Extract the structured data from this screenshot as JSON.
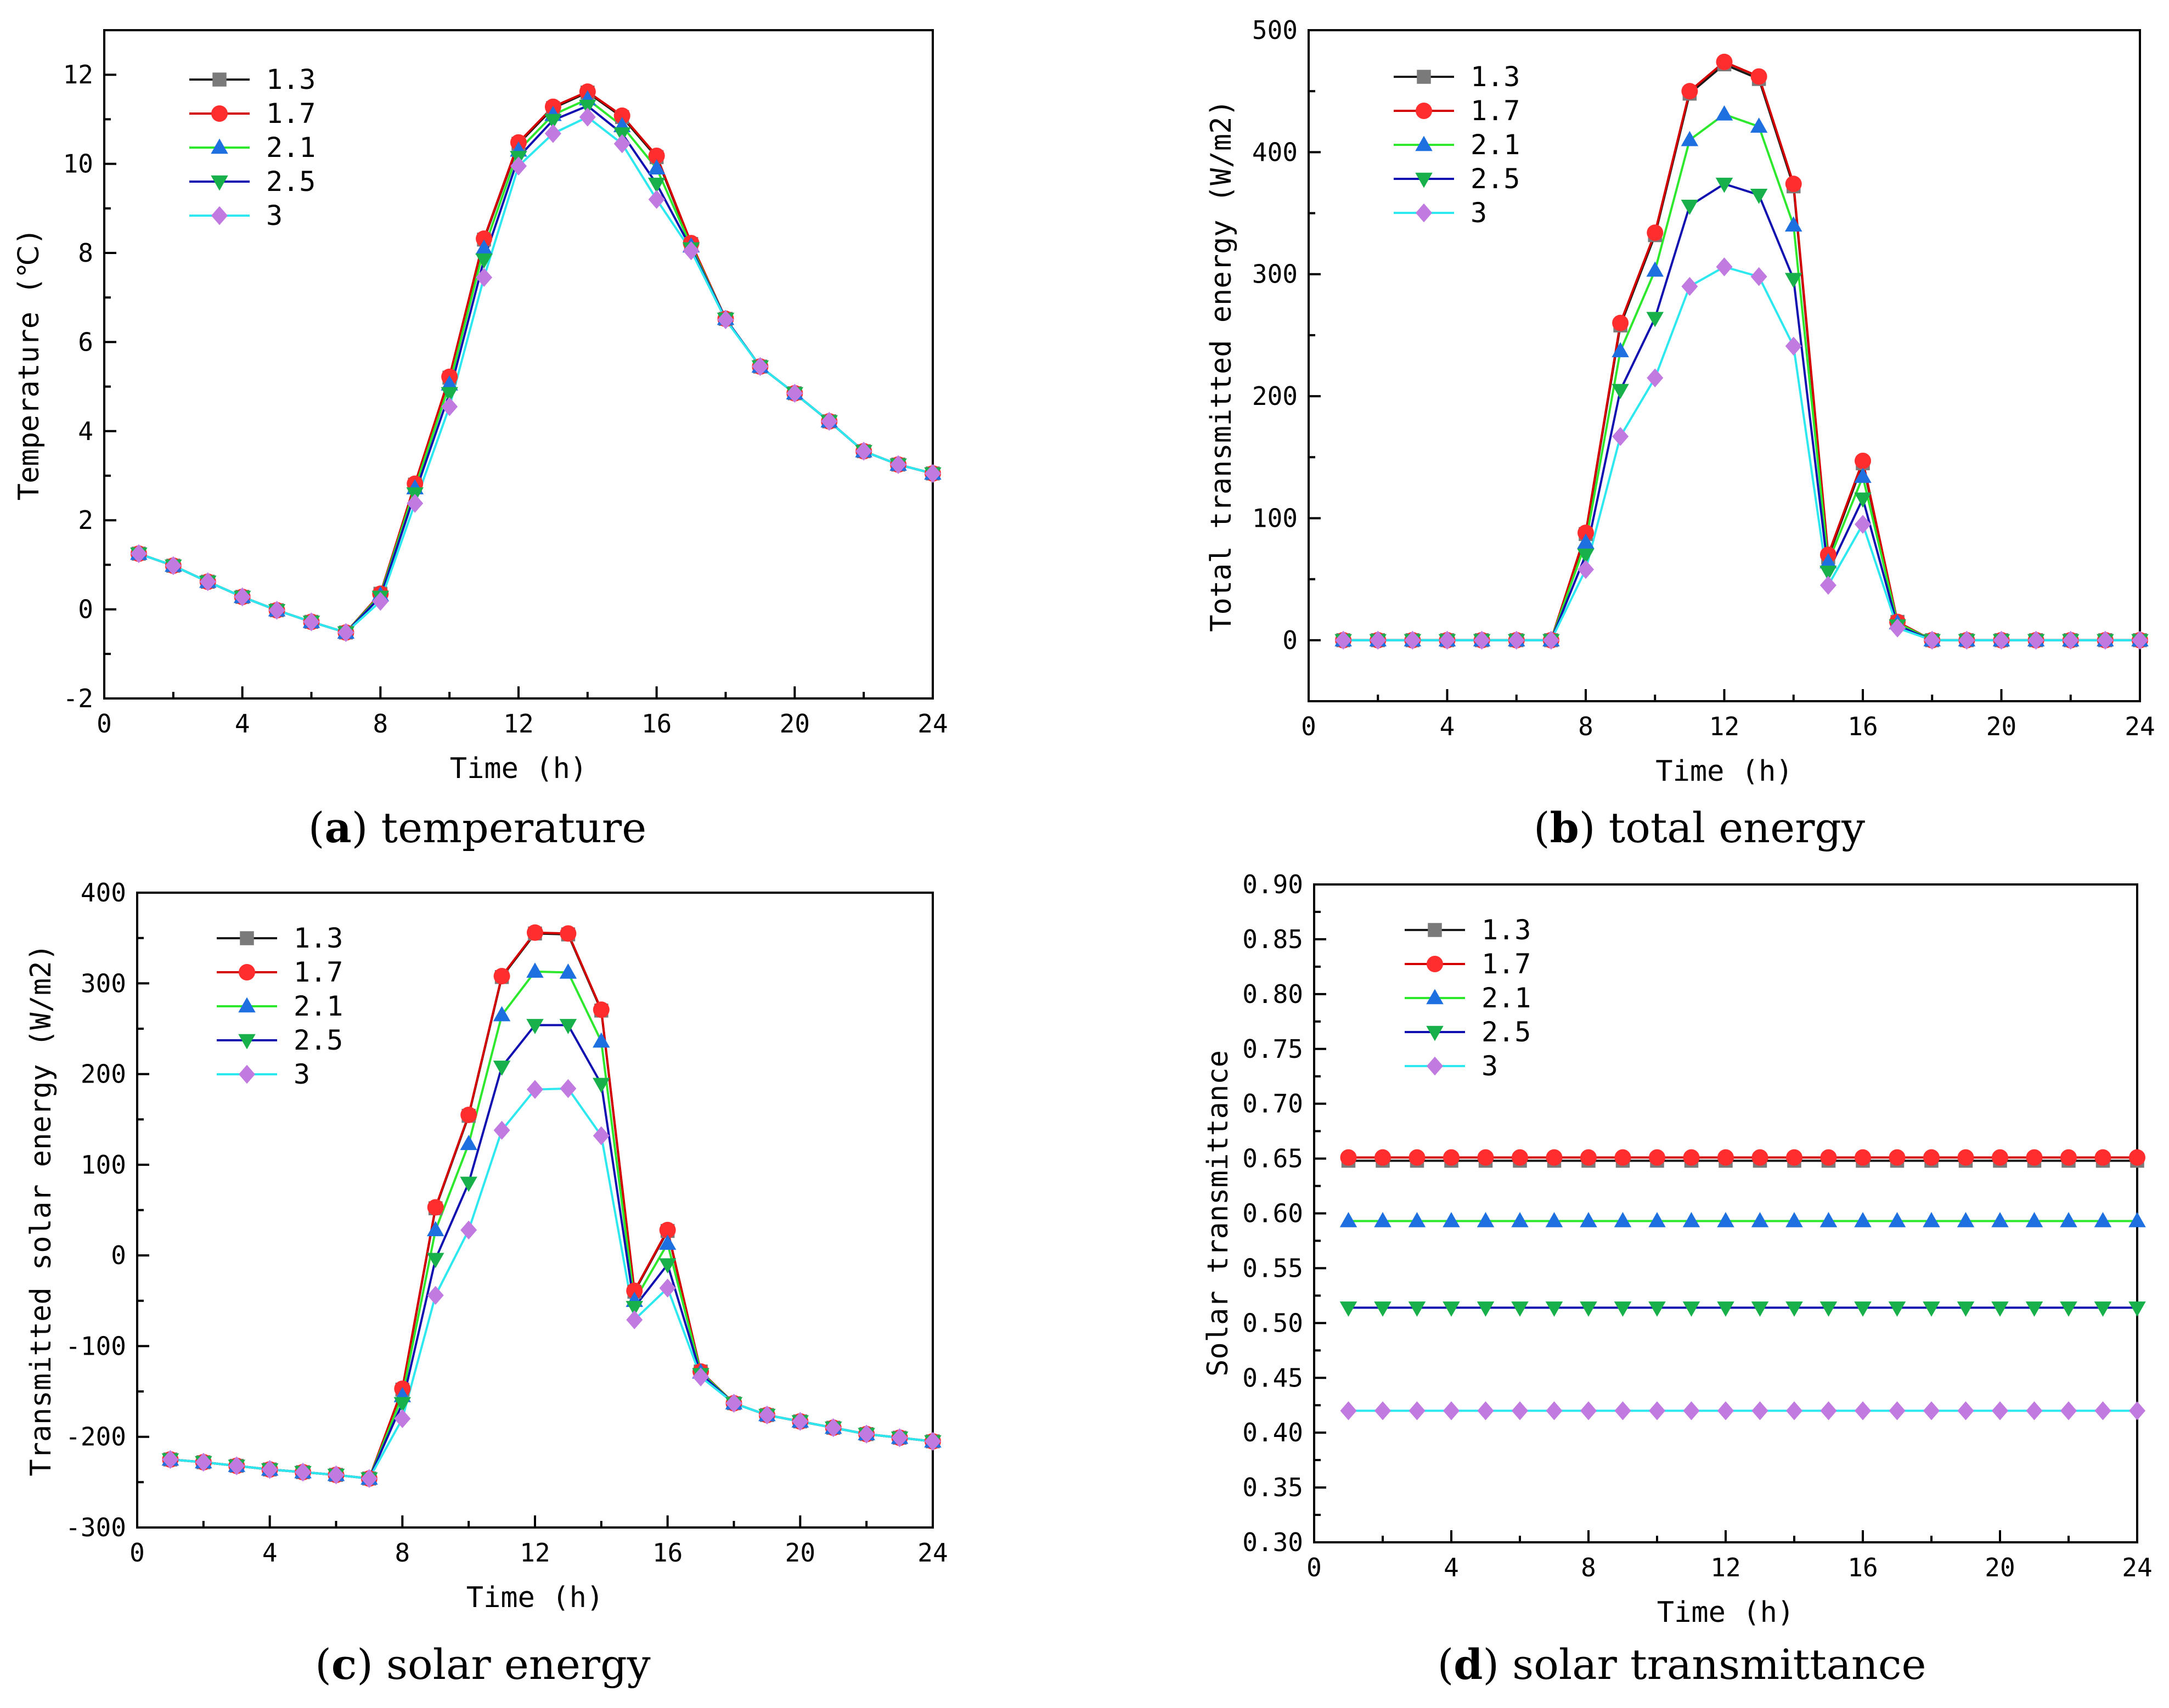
{
  "series_styles": [
    {
      "name": "1.3",
      "line": "#1a1a1a",
      "marker": "square",
      "fill": "#7a7a7a"
    },
    {
      "name": "1.7",
      "line": "#d40000",
      "marker": "circle",
      "fill": "#ff2d2d"
    },
    {
      "name": "2.1",
      "line": "#2ee82e",
      "marker": "triangle-up",
      "fill": "#1e6fe0"
    },
    {
      "name": "2.5",
      "line": "#1010b0",
      "marker": "triangle-down",
      "fill": "#18b04a"
    },
    {
      "name": "3",
      "line": "#2ee8f0",
      "marker": "diamond",
      "fill": "#c07ae0"
    }
  ],
  "chart_data": [
    {
      "type": "line",
      "title": "temperature",
      "caption_label": "a",
      "xlabel": "Time (h)",
      "ylabel": "Temperature (℃)",
      "xlim": [
        0,
        24
      ],
      "ylim": [
        -2,
        13
      ],
      "xticks": [
        0,
        4,
        8,
        12,
        16,
        20,
        24
      ],
      "yticks": [
        -2,
        0,
        2,
        4,
        6,
        8,
        10,
        12
      ],
      "x": [
        1,
        2,
        3,
        4,
        5,
        6,
        7,
        8,
        9,
        10,
        11,
        12,
        13,
        14,
        15,
        16,
        17,
        18,
        19,
        20,
        21,
        22,
        23,
        24
      ],
      "series": [
        {
          "name": "1.3",
          "values": [
            1.25,
            0.98,
            0.62,
            0.28,
            -0.02,
            -0.28,
            -0.52,
            0.35,
            2.8,
            5.2,
            8.3,
            10.45,
            11.25,
            11.6,
            11.05,
            10.15,
            8.2,
            6.52,
            5.45,
            4.85,
            4.22,
            3.55,
            3.25,
            3.05
          ]
        },
        {
          "name": "1.7",
          "values": [
            1.25,
            0.98,
            0.62,
            0.28,
            -0.02,
            -0.28,
            -0.52,
            0.35,
            2.82,
            5.22,
            8.32,
            10.48,
            11.28,
            11.62,
            11.08,
            10.18,
            8.22,
            6.52,
            5.45,
            4.85,
            4.22,
            3.55,
            3.25,
            3.05
          ]
        },
        {
          "name": "2.1",
          "values": [
            1.25,
            0.98,
            0.62,
            0.28,
            -0.02,
            -0.28,
            -0.52,
            0.32,
            2.72,
            5.05,
            8.1,
            10.3,
            11.1,
            11.45,
            10.85,
            9.9,
            8.15,
            6.52,
            5.45,
            4.85,
            4.22,
            3.55,
            3.25,
            3.05
          ]
        },
        {
          "name": "2.5",
          "values": [
            1.25,
            0.98,
            0.62,
            0.28,
            -0.02,
            -0.28,
            -0.52,
            0.28,
            2.6,
            4.85,
            7.85,
            10.15,
            10.98,
            11.3,
            10.68,
            9.55,
            8.1,
            6.52,
            5.45,
            4.85,
            4.22,
            3.55,
            3.25,
            3.05
          ]
        },
        {
          "name": "3",
          "values": [
            1.25,
            0.98,
            0.62,
            0.28,
            -0.02,
            -0.28,
            -0.52,
            0.18,
            2.38,
            4.55,
            7.45,
            9.95,
            10.68,
            11.05,
            10.45,
            9.2,
            8.05,
            6.5,
            5.45,
            4.85,
            4.22,
            3.55,
            3.25,
            3.05
          ]
        }
      ]
    },
    {
      "type": "line",
      "title": "total energy",
      "caption_label": "b",
      "xlabel": "Time (h)",
      "ylabel": "Total transmitted energy (W/m2)",
      "xlim": [
        0,
        24
      ],
      "ylim": [
        -50,
        500
      ],
      "xticks": [
        0,
        4,
        8,
        12,
        16,
        20,
        24
      ],
      "yticks": [
        0,
        100,
        200,
        300,
        400,
        500
      ],
      "x": [
        1,
        2,
        3,
        4,
        5,
        6,
        7,
        8,
        9,
        10,
        11,
        12,
        13,
        14,
        15,
        16,
        17,
        18,
        19,
        20,
        21,
        22,
        23,
        24
      ],
      "series": [
        {
          "name": "1.3",
          "values": [
            0,
            0,
            0,
            0,
            0,
            0,
            0,
            87,
            258,
            332,
            448,
            472,
            460,
            372,
            68,
            145,
            15,
            0,
            0,
            0,
            0,
            0,
            0,
            0
          ]
        },
        {
          "name": "1.7",
          "values": [
            0,
            0,
            0,
            0,
            0,
            0,
            0,
            88,
            260,
            334,
            450,
            474,
            462,
            374,
            70,
            147,
            15,
            0,
            0,
            0,
            0,
            0,
            0,
            0
          ]
        },
        {
          "name": "2.1",
          "values": [
            0,
            0,
            0,
            0,
            0,
            0,
            0,
            80,
            237,
            303,
            410,
            431,
            421,
            340,
            64,
            134,
            14,
            0,
            0,
            0,
            0,
            0,
            0,
            0
          ]
        },
        {
          "name": "2.5",
          "values": [
            0,
            0,
            0,
            0,
            0,
            0,
            0,
            70,
            205,
            264,
            356,
            374,
            365,
            296,
            56,
            116,
            12,
            0,
            0,
            0,
            0,
            0,
            0,
            0
          ]
        },
        {
          "name": "3",
          "values": [
            0,
            0,
            0,
            0,
            0,
            0,
            0,
            58,
            167,
            215,
            290,
            306,
            298,
            241,
            45,
            95,
            10,
            0,
            0,
            0,
            0,
            0,
            0,
            0
          ]
        }
      ]
    },
    {
      "type": "line",
      "title": "solar energy",
      "caption_label": "c",
      "xlabel": "Time (h)",
      "ylabel": "Transmitted solar energy (W/m2)",
      "xlim": [
        0,
        24
      ],
      "ylim": [
        -300,
        400
      ],
      "xticks": [
        0,
        4,
        8,
        12,
        16,
        20,
        24
      ],
      "yticks": [
        -300,
        -200,
        -100,
        0,
        100,
        200,
        300,
        400
      ],
      "x": [
        1,
        2,
        3,
        4,
        5,
        6,
        7,
        8,
        9,
        10,
        11,
        12,
        13,
        14,
        15,
        16,
        17,
        18,
        19,
        20,
        21,
        22,
        23,
        24
      ],
      "series": [
        {
          "name": "1.3",
          "values": [
            -225,
            -228,
            -232,
            -236,
            -239,
            -242,
            -246,
            -148,
            52,
            154,
            307,
            355,
            354,
            270,
            -40,
            27,
            -128,
            -163,
            -176,
            -183,
            -190,
            -197,
            -201,
            -205
          ]
        },
        {
          "name": "1.7",
          "values": [
            -225,
            -228,
            -232,
            -236,
            -239,
            -242,
            -246,
            -147,
            53,
            155,
            308,
            356,
            355,
            271,
            -39,
            28,
            -128,
            -163,
            -176,
            -183,
            -190,
            -197,
            -201,
            -205
          ]
        },
        {
          "name": "2.1",
          "values": [
            -225,
            -228,
            -232,
            -236,
            -239,
            -242,
            -246,
            -155,
            28,
            123,
            265,
            313,
            312,
            236,
            -50,
            13,
            -129,
            -163,
            -176,
            -183,
            -190,
            -197,
            -201,
            -205
          ]
        },
        {
          "name": "2.5",
          "values": [
            -225,
            -228,
            -232,
            -236,
            -239,
            -242,
            -246,
            -163,
            -4,
            80,
            208,
            254,
            254,
            189,
            -57,
            -10,
            -131,
            -163,
            -176,
            -183,
            -190,
            -197,
            -201,
            -205
          ]
        },
        {
          "name": "3",
          "values": [
            -225,
            -228,
            -232,
            -236,
            -239,
            -242,
            -246,
            -180,
            -44,
            28,
            138,
            183,
            184,
            132,
            -71,
            -36,
            -134,
            -163,
            -176,
            -183,
            -190,
            -197,
            -201,
            -205
          ]
        }
      ]
    },
    {
      "type": "line",
      "title": "solar transmittance",
      "caption_label": "d",
      "xlabel": "Time (h)",
      "ylabel": "Solar transmittance",
      "xlim": [
        0,
        24
      ],
      "ylim": [
        0.3,
        0.9
      ],
      "xticks": [
        0,
        4,
        8,
        12,
        16,
        20,
        24
      ],
      "yticks": [
        "0.30",
        "0.35",
        "0.40",
        "0.45",
        "0.50",
        "0.55",
        "0.60",
        "0.65",
        "0.70",
        "0.75",
        "0.80",
        "0.85",
        "0.90"
      ],
      "x": [
        1,
        2,
        3,
        4,
        5,
        6,
        7,
        8,
        9,
        10,
        11,
        12,
        13,
        14,
        15,
        16,
        17,
        18,
        19,
        20,
        21,
        22,
        23,
        24
      ],
      "series": [
        {
          "name": "1.3",
          "values": [
            0.648,
            0.648,
            0.648,
            0.648,
            0.648,
            0.648,
            0.648,
            0.648,
            0.648,
            0.648,
            0.648,
            0.648,
            0.648,
            0.648,
            0.648,
            0.648,
            0.648,
            0.648,
            0.648,
            0.648,
            0.648,
            0.648,
            0.648,
            0.648
          ]
        },
        {
          "name": "1.7",
          "values": [
            0.651,
            0.651,
            0.651,
            0.651,
            0.651,
            0.651,
            0.651,
            0.651,
            0.651,
            0.651,
            0.651,
            0.651,
            0.651,
            0.651,
            0.651,
            0.651,
            0.651,
            0.651,
            0.651,
            0.651,
            0.651,
            0.651,
            0.651,
            0.651
          ]
        },
        {
          "name": "2.1",
          "values": [
            0.593,
            0.593,
            0.593,
            0.593,
            0.593,
            0.593,
            0.593,
            0.593,
            0.593,
            0.593,
            0.593,
            0.593,
            0.593,
            0.593,
            0.593,
            0.593,
            0.593,
            0.593,
            0.593,
            0.593,
            0.593,
            0.593,
            0.593,
            0.593
          ]
        },
        {
          "name": "2.5",
          "values": [
            0.514,
            0.514,
            0.514,
            0.514,
            0.514,
            0.514,
            0.514,
            0.514,
            0.514,
            0.514,
            0.514,
            0.514,
            0.514,
            0.514,
            0.514,
            0.514,
            0.514,
            0.514,
            0.514,
            0.514,
            0.514,
            0.514,
            0.514,
            0.514
          ]
        },
        {
          "name": "3",
          "values": [
            0.42,
            0.42,
            0.42,
            0.42,
            0.42,
            0.42,
            0.42,
            0.42,
            0.42,
            0.42,
            0.42,
            0.42,
            0.42,
            0.42,
            0.42,
            0.42,
            0.42,
            0.42,
            0.42,
            0.42,
            0.42,
            0.42,
            0.42,
            0.42
          ]
        }
      ]
    }
  ]
}
